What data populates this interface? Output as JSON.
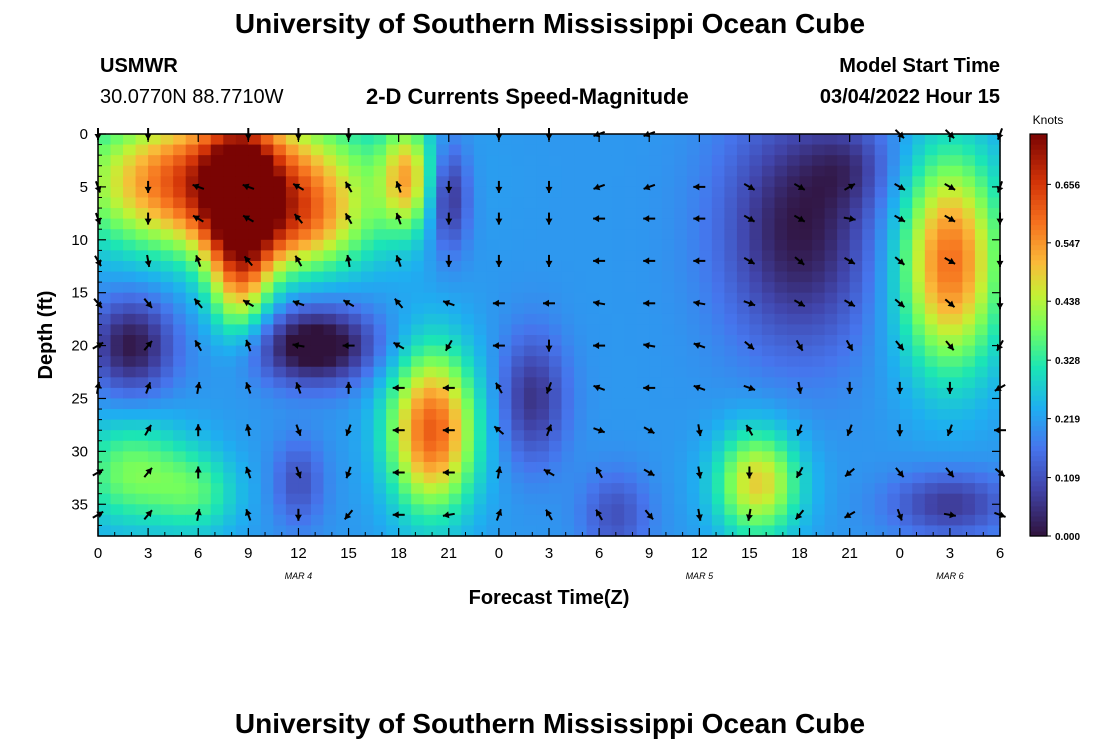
{
  "page": {
    "title": "University of Southern Mississippi Ocean Cube",
    "footer_title": "University of Southern Mississippi Ocean Cube",
    "station_name": "USMWR",
    "station_coords": "30.0770N  88.7710W",
    "chart_heading": "2-D Currents Speed-Magnitude",
    "model_start_label": "Model Start Time",
    "model_start_value": "03/04/2022 Hour 15"
  },
  "chart_data": {
    "type": "heatmap",
    "title": "2-D Currents Speed-Magnitude",
    "xlabel": "Forecast Time(Z)",
    "ylabel": "Depth (ft)",
    "colorbar_label": "Knots",
    "colorbar_ticks": [
      "0.656",
      "0.547",
      "0.438",
      "0.328",
      "0.219",
      "0.109",
      "0.000"
    ],
    "colorbar_values": [
      0.656,
      0.547,
      0.438,
      0.328,
      0.219,
      0.109,
      0.0
    ],
    "value_range": [
      0.0,
      0.75
    ],
    "x_range": [
      0,
      54
    ],
    "y_range": [
      0,
      38
    ],
    "x_tick_values": [
      0,
      3,
      6,
      9,
      12,
      15,
      18,
      21,
      24,
      27,
      30,
      33,
      36,
      39,
      42,
      45,
      48,
      51,
      54
    ],
    "x_tick_labels": [
      "0",
      "3",
      "6",
      "9",
      "12",
      "15",
      "18",
      "21",
      "0",
      "3",
      "6",
      "9",
      "12",
      "15",
      "18",
      "21",
      "0",
      "3",
      "6"
    ],
    "y_tick_values": [
      0,
      5,
      10,
      15,
      20,
      25,
      30,
      35
    ],
    "y_tick_labels": [
      "0",
      "5",
      "10",
      "15",
      "20",
      "25",
      "30",
      "35"
    ],
    "date_labels": [
      {
        "x": 12,
        "text": "MAR 4"
      },
      {
        "x": 36,
        "text": "MAR 5"
      },
      {
        "x": 51,
        "text": "MAR 6"
      }
    ],
    "speed_features": [
      {
        "x": 7.5,
        "y": 4.5,
        "sx": 8.0,
        "sy": 6.5,
        "amp": 0.48
      },
      {
        "x": 12.0,
        "y": 9.0,
        "sx": 4.0,
        "sy": 4.5,
        "amp": 0.18
      },
      {
        "x": 20.0,
        "y": 28.0,
        "sx": 2.6,
        "sy": 7.5,
        "amp": 0.4
      },
      {
        "x": 8.5,
        "y": 7.0,
        "sx": 2.0,
        "sy": 8.0,
        "amp": 0.35
      },
      {
        "x": 8.5,
        "y": 15.0,
        "sx": 1.8,
        "sy": 5.0,
        "amp": 0.15
      },
      {
        "x": 51.0,
        "y": 12.0,
        "sx": 3.0,
        "sy": 10.0,
        "amp": 0.38
      },
      {
        "x": 2.0,
        "y": 32.0,
        "sx": 3.5,
        "sy": 5.0,
        "amp": 0.18
      },
      {
        "x": 6.0,
        "y": 34.0,
        "sx": 2.5,
        "sy": 4.0,
        "amp": 0.12
      },
      {
        "x": 39.5,
        "y": 33.0,
        "sx": 2.5,
        "sy": 5.0,
        "amp": 0.28
      },
      {
        "x": 18.5,
        "y": 4.0,
        "sx": 1.5,
        "sy": 5.0,
        "amp": 0.25
      },
      {
        "x": 13.0,
        "y": 20.0,
        "sx": 3.5,
        "sy": 3.5,
        "amp": -0.26
      },
      {
        "x": 2.0,
        "y": 20.0,
        "sx": 2.5,
        "sy": 4.5,
        "amp": -0.2
      },
      {
        "x": 21.0,
        "y": 6.0,
        "sx": 1.2,
        "sy": 5.0,
        "amp": -0.17
      },
      {
        "x": 26.0,
        "y": 25.0,
        "sx": 2.0,
        "sy": 6.0,
        "amp": -0.15
      },
      {
        "x": 42.0,
        "y": 9.0,
        "sx": 4.5,
        "sy": 11.0,
        "amp": -0.2
      },
      {
        "x": 45.0,
        "y": 3.0,
        "sx": 2.5,
        "sy": 4.0,
        "amp": -0.08
      },
      {
        "x": 31.0,
        "y": 36.0,
        "sx": 2.0,
        "sy": 4.0,
        "amp": -0.1
      },
      {
        "x": 51.0,
        "y": 35.0,
        "sx": 3.5,
        "sy": 3.0,
        "amp": -0.14
      },
      {
        "x": 12.0,
        "y": 33.0,
        "sx": 1.5,
        "sy": 4.0,
        "amp": -0.1
      }
    ],
    "speed_background": 0.21,
    "current_vectors": [
      {
        "t": 0,
        "d": 0,
        "dir": 180
      },
      {
        "t": 3,
        "d": 0,
        "dir": 180
      },
      {
        "t": 9,
        "d": 0,
        "dir": 180
      },
      {
        "t": 12,
        "d": 0,
        "dir": 180
      },
      {
        "t": 15,
        "d": 0,
        "dir": 180
      },
      {
        "t": 24,
        "d": 0,
        "dir": 180
      },
      {
        "t": 27,
        "d": 0,
        "dir": 180
      },
      {
        "t": 30,
        "d": 0,
        "dir": 250
      },
      {
        "t": 33,
        "d": 0,
        "dir": 250
      },
      {
        "t": 48,
        "d": 0,
        "dir": 135
      },
      {
        "t": 51,
        "d": 0,
        "dir": 135
      },
      {
        "t": 54,
        "d": 0,
        "dir": 200
      },
      {
        "t": 0,
        "d": 5,
        "dir": 160
      },
      {
        "t": 3,
        "d": 5,
        "dir": 180
      },
      {
        "t": 6,
        "d": 5,
        "dir": 290
      },
      {
        "t": 9,
        "d": 5,
        "dir": 290
      },
      {
        "t": 12,
        "d": 5,
        "dir": 300
      },
      {
        "t": 15,
        "d": 5,
        "dir": 330
      },
      {
        "t": 18,
        "d": 5,
        "dir": 340
      },
      {
        "t": 21,
        "d": 5,
        "dir": 180
      },
      {
        "t": 24,
        "d": 5,
        "dir": 180
      },
      {
        "t": 27,
        "d": 5,
        "dir": 180
      },
      {
        "t": 30,
        "d": 5,
        "dir": 250
      },
      {
        "t": 33,
        "d": 5,
        "dir": 250
      },
      {
        "t": 36,
        "d": 5,
        "dir": 270
      },
      {
        "t": 39,
        "d": 5,
        "dir": 120
      },
      {
        "t": 42,
        "d": 5,
        "dir": 120
      },
      {
        "t": 45,
        "d": 5,
        "dir": 60
      },
      {
        "t": 48,
        "d": 5,
        "dir": 120
      },
      {
        "t": 51,
        "d": 5,
        "dir": 120
      },
      {
        "t": 54,
        "d": 5,
        "dir": 200
      },
      {
        "t": 0,
        "d": 8,
        "dir": 160
      },
      {
        "t": 3,
        "d": 8,
        "dir": 180
      },
      {
        "t": 6,
        "d": 8,
        "dir": 300
      },
      {
        "t": 9,
        "d": 8,
        "dir": 300
      },
      {
        "t": 12,
        "d": 8,
        "dir": 320
      },
      {
        "t": 15,
        "d": 8,
        "dir": 330
      },
      {
        "t": 18,
        "d": 8,
        "dir": 340
      },
      {
        "t": 21,
        "d": 8,
        "dir": 180
      },
      {
        "t": 24,
        "d": 8,
        "dir": 180
      },
      {
        "t": 27,
        "d": 8,
        "dir": 180
      },
      {
        "t": 30,
        "d": 8,
        "dir": 270
      },
      {
        "t": 33,
        "d": 8,
        "dir": 270
      },
      {
        "t": 36,
        "d": 8,
        "dir": 270
      },
      {
        "t": 39,
        "d": 8,
        "dir": 120
      },
      {
        "t": 42,
        "d": 8,
        "dir": 120
      },
      {
        "t": 45,
        "d": 8,
        "dir": 100
      },
      {
        "t": 48,
        "d": 8,
        "dir": 120
      },
      {
        "t": 51,
        "d": 8,
        "dir": 120
      },
      {
        "t": 54,
        "d": 8,
        "dir": 180
      },
      {
        "t": 0,
        "d": 12,
        "dir": 150
      },
      {
        "t": 3,
        "d": 12,
        "dir": 170
      },
      {
        "t": 6,
        "d": 12,
        "dir": 340
      },
      {
        "t": 9,
        "d": 12,
        "dir": 320
      },
      {
        "t": 12,
        "d": 12,
        "dir": 330
      },
      {
        "t": 15,
        "d": 12,
        "dir": 350
      },
      {
        "t": 18,
        "d": 12,
        "dir": 340
      },
      {
        "t": 21,
        "d": 12,
        "dir": 180
      },
      {
        "t": 24,
        "d": 12,
        "dir": 180
      },
      {
        "t": 27,
        "d": 12,
        "dir": 180
      },
      {
        "t": 30,
        "d": 12,
        "dir": 270
      },
      {
        "t": 33,
        "d": 12,
        "dir": 270
      },
      {
        "t": 36,
        "d": 12,
        "dir": 270
      },
      {
        "t": 39,
        "d": 12,
        "dir": 120
      },
      {
        "t": 42,
        "d": 12,
        "dir": 130
      },
      {
        "t": 45,
        "d": 12,
        "dir": 120
      },
      {
        "t": 48,
        "d": 12,
        "dir": 130
      },
      {
        "t": 51,
        "d": 12,
        "dir": 120
      },
      {
        "t": 54,
        "d": 12,
        "dir": 180
      },
      {
        "t": 0,
        "d": 16,
        "dir": 140
      },
      {
        "t": 3,
        "d": 16,
        "dir": 140
      },
      {
        "t": 6,
        "d": 16,
        "dir": 320
      },
      {
        "t": 9,
        "d": 16,
        "dir": 300
      },
      {
        "t": 12,
        "d": 16,
        "dir": 290
      },
      {
        "t": 15,
        "d": 16,
        "dir": 300
      },
      {
        "t": 18,
        "d": 16,
        "dir": 320
      },
      {
        "t": 21,
        "d": 16,
        "dir": 290
      },
      {
        "t": 24,
        "d": 16,
        "dir": 270
      },
      {
        "t": 27,
        "d": 16,
        "dir": 270
      },
      {
        "t": 30,
        "d": 16,
        "dir": 280
      },
      {
        "t": 33,
        "d": 16,
        "dir": 270
      },
      {
        "t": 36,
        "d": 16,
        "dir": 280
      },
      {
        "t": 39,
        "d": 16,
        "dir": 110
      },
      {
        "t": 42,
        "d": 16,
        "dir": 120
      },
      {
        "t": 45,
        "d": 16,
        "dir": 120
      },
      {
        "t": 48,
        "d": 16,
        "dir": 130
      },
      {
        "t": 51,
        "d": 16,
        "dir": 130
      },
      {
        "t": 54,
        "d": 16,
        "dir": 180
      },
      {
        "t": 0,
        "d": 20,
        "dir": 60
      },
      {
        "t": 3,
        "d": 20,
        "dir": 40
      },
      {
        "t": 6,
        "d": 20,
        "dir": 330
      },
      {
        "t": 9,
        "d": 20,
        "dir": 340
      },
      {
        "t": 12,
        "d": 20,
        "dir": 280
      },
      {
        "t": 15,
        "d": 20,
        "dir": 270
      },
      {
        "t": 18,
        "d": 20,
        "dir": 300
      },
      {
        "t": 21,
        "d": 20,
        "dir": 210
      },
      {
        "t": 24,
        "d": 20,
        "dir": 270
      },
      {
        "t": 27,
        "d": 20,
        "dir": 180
      },
      {
        "t": 30,
        "d": 20,
        "dir": 270
      },
      {
        "t": 33,
        "d": 20,
        "dir": 280
      },
      {
        "t": 36,
        "d": 20,
        "dir": 290
      },
      {
        "t": 39,
        "d": 20,
        "dir": 130
      },
      {
        "t": 42,
        "d": 20,
        "dir": 150
      },
      {
        "t": 45,
        "d": 20,
        "dir": 150
      },
      {
        "t": 48,
        "d": 20,
        "dir": 140
      },
      {
        "t": 51,
        "d": 20,
        "dir": 140
      },
      {
        "t": 54,
        "d": 20,
        "dir": 210
      },
      {
        "t": 0,
        "d": 24,
        "dir": 10
      },
      {
        "t": 3,
        "d": 24,
        "dir": 20
      },
      {
        "t": 6,
        "d": 24,
        "dir": 10
      },
      {
        "t": 9,
        "d": 24,
        "dir": 340
      },
      {
        "t": 12,
        "d": 24,
        "dir": 340
      },
      {
        "t": 15,
        "d": 24,
        "dir": 0
      },
      {
        "t": 18,
        "d": 24,
        "dir": 270
      },
      {
        "t": 21,
        "d": 24,
        "dir": 270
      },
      {
        "t": 24,
        "d": 24,
        "dir": 330
      },
      {
        "t": 27,
        "d": 24,
        "dir": 200
      },
      {
        "t": 30,
        "d": 24,
        "dir": 290
      },
      {
        "t": 33,
        "d": 24,
        "dir": 270
      },
      {
        "t": 36,
        "d": 24,
        "dir": 290
      },
      {
        "t": 39,
        "d": 24,
        "dir": 110
      },
      {
        "t": 42,
        "d": 24,
        "dir": 170
      },
      {
        "t": 45,
        "d": 24,
        "dir": 180
      },
      {
        "t": 48,
        "d": 24,
        "dir": 180
      },
      {
        "t": 51,
        "d": 24,
        "dir": 180
      },
      {
        "t": 54,
        "d": 24,
        "dir": 240
      },
      {
        "t": 3,
        "d": 28,
        "dir": 30
      },
      {
        "t": 6,
        "d": 28,
        "dir": 0
      },
      {
        "t": 9,
        "d": 28,
        "dir": 350
      },
      {
        "t": 12,
        "d": 28,
        "dir": 160
      },
      {
        "t": 15,
        "d": 28,
        "dir": 200
      },
      {
        "t": 18,
        "d": 28,
        "dir": 270
      },
      {
        "t": 21,
        "d": 28,
        "dir": 270
      },
      {
        "t": 24,
        "d": 28,
        "dir": 310
      },
      {
        "t": 27,
        "d": 28,
        "dir": 20
      },
      {
        "t": 30,
        "d": 28,
        "dir": 110
      },
      {
        "t": 33,
        "d": 28,
        "dir": 120
      },
      {
        "t": 36,
        "d": 28,
        "dir": 170
      },
      {
        "t": 39,
        "d": 28,
        "dir": 330
      },
      {
        "t": 42,
        "d": 28,
        "dir": 200
      },
      {
        "t": 45,
        "d": 28,
        "dir": 200
      },
      {
        "t": 48,
        "d": 28,
        "dir": 180
      },
      {
        "t": 51,
        "d": 28,
        "dir": 200
      },
      {
        "t": 54,
        "d": 28,
        "dir": 270
      },
      {
        "t": 0,
        "d": 32,
        "dir": 60
      },
      {
        "t": 3,
        "d": 32,
        "dir": 40
      },
      {
        "t": 6,
        "d": 32,
        "dir": 0
      },
      {
        "t": 9,
        "d": 32,
        "dir": 340
      },
      {
        "t": 12,
        "d": 32,
        "dir": 160
      },
      {
        "t": 15,
        "d": 32,
        "dir": 200
      },
      {
        "t": 18,
        "d": 32,
        "dir": 270
      },
      {
        "t": 21,
        "d": 32,
        "dir": 270
      },
      {
        "t": 24,
        "d": 32,
        "dir": 10
      },
      {
        "t": 27,
        "d": 32,
        "dir": 300
      },
      {
        "t": 30,
        "d": 32,
        "dir": 330
      },
      {
        "t": 33,
        "d": 32,
        "dir": 120
      },
      {
        "t": 36,
        "d": 32,
        "dir": 170
      },
      {
        "t": 39,
        "d": 32,
        "dir": 180
      },
      {
        "t": 42,
        "d": 32,
        "dir": 210
      },
      {
        "t": 45,
        "d": 32,
        "dir": 230
      },
      {
        "t": 48,
        "d": 32,
        "dir": 140
      },
      {
        "t": 51,
        "d": 32,
        "dir": 140
      },
      {
        "t": 54,
        "d": 32,
        "dir": 130
      },
      {
        "t": 0,
        "d": 36,
        "dir": 60
      },
      {
        "t": 3,
        "d": 36,
        "dir": 40
      },
      {
        "t": 6,
        "d": 36,
        "dir": 10
      },
      {
        "t": 9,
        "d": 36,
        "dir": 340
      },
      {
        "t": 12,
        "d": 36,
        "dir": 180
      },
      {
        "t": 15,
        "d": 36,
        "dir": 220
      },
      {
        "t": 18,
        "d": 36,
        "dir": 270
      },
      {
        "t": 21,
        "d": 36,
        "dir": 260
      },
      {
        "t": 24,
        "d": 36,
        "dir": 20
      },
      {
        "t": 27,
        "d": 36,
        "dir": 330
      },
      {
        "t": 30,
        "d": 36,
        "dir": 330
      },
      {
        "t": 33,
        "d": 36,
        "dir": 140
      },
      {
        "t": 36,
        "d": 36,
        "dir": 170
      },
      {
        "t": 39,
        "d": 36,
        "dir": 190
      },
      {
        "t": 42,
        "d": 36,
        "dir": 220
      },
      {
        "t": 45,
        "d": 36,
        "dir": 240
      },
      {
        "t": 48,
        "d": 36,
        "dir": 160
      },
      {
        "t": 51,
        "d": 36,
        "dir": 100
      },
      {
        "t": 54,
        "d": 36,
        "dir": 110
      }
    ]
  }
}
